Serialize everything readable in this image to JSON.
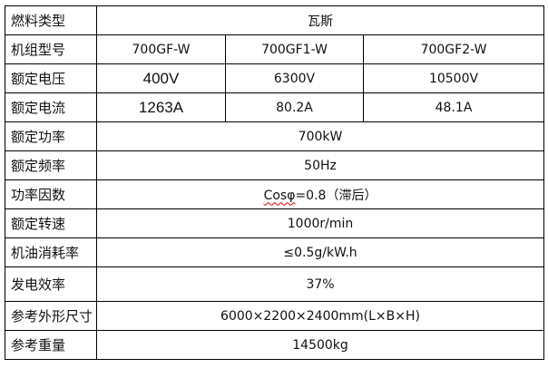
{
  "table": {
    "rows": [
      {
        "label": "燃料类型",
        "value": "瓦斯"
      },
      {
        "label": "机组型号",
        "values": [
          "700GF-W",
          "700GF1-W",
          "700GF2-W"
        ]
      },
      {
        "label": "额定电压",
        "values": [
          "400V",
          "6300V",
          "10500V"
        ]
      },
      {
        "label": "额定电流",
        "values": [
          "1263A",
          "80.2A",
          "48.1A"
        ]
      },
      {
        "label": "额定功率",
        "value": "700kW"
      },
      {
        "label": "额定频率",
        "value": "50Hz"
      },
      {
        "label": "功率因数",
        "value_part1": "Cosφ",
        "value_part2": "=0.8（滞后）"
      },
      {
        "label": "额定转速",
        "value": "1000r/min"
      },
      {
        "label": "机油消耗率",
        "value": "≤0.5g/kW.h"
      },
      {
        "label": "发电效率",
        "value": "37%"
      },
      {
        "label": "参考外形尺寸",
        "value": "6000×2200×2400mm(L×B×H)"
      },
      {
        "label": "参考重量",
        "value": "14500kg"
      }
    ]
  }
}
